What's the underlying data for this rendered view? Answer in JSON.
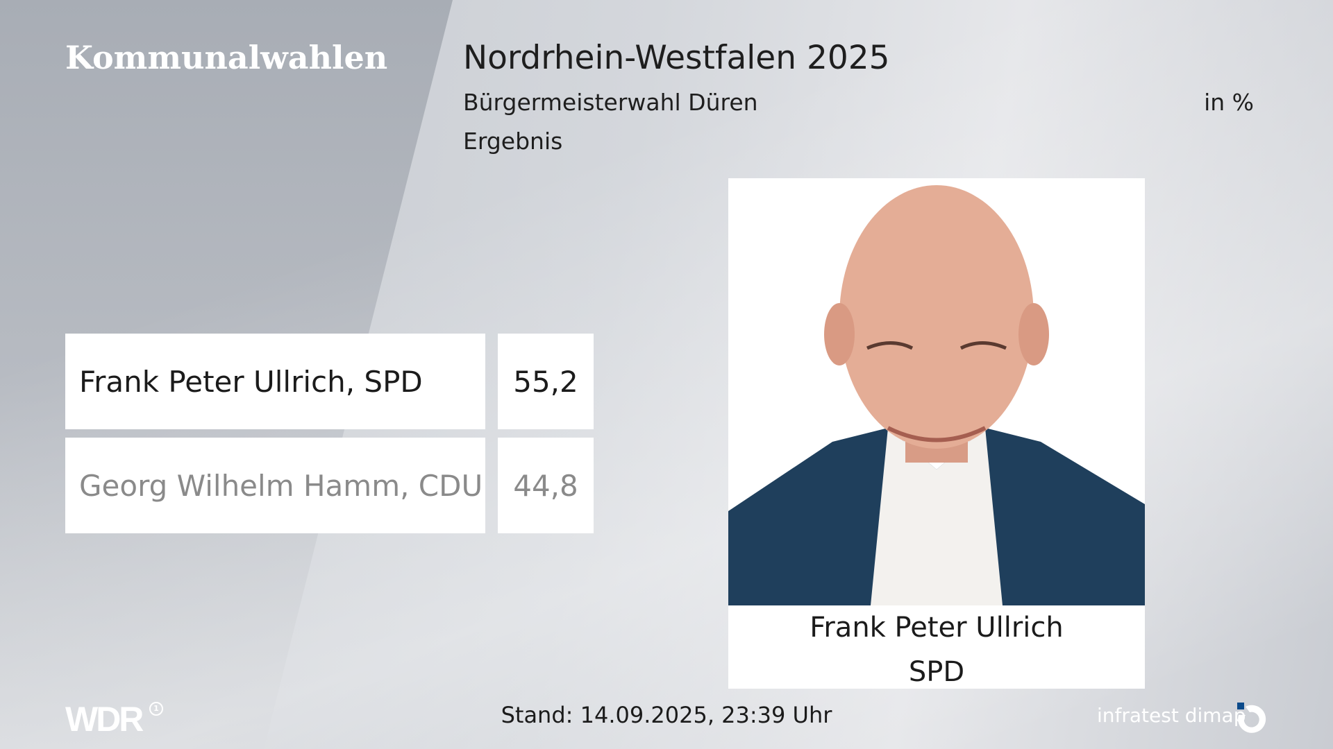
{
  "header": {
    "brand": "Kommunalwahlen",
    "title": "Nordrhein-Westfalen 2025",
    "subtitle": "Bürgermeisterwahl Düren",
    "subtitle2": "Ergebnis",
    "unit": "in %"
  },
  "results": [
    {
      "candidate": "Frank Peter Ullrich, SPD",
      "value": "55,2",
      "winner": true
    },
    {
      "candidate": "Georg Wilhelm Hamm, CDU",
      "value": "44,8",
      "winner": false
    }
  ],
  "portrait": {
    "name": "Frank Peter Ullrich",
    "party": "SPD"
  },
  "footer": {
    "stand": "Stand: 14.09.2025, 23:39 Uhr",
    "broadcaster": "WDR",
    "pollster": "infratest dimap"
  },
  "colors": {
    "accent": "#0b4a8a",
    "jacket": "#1f3f5c"
  }
}
